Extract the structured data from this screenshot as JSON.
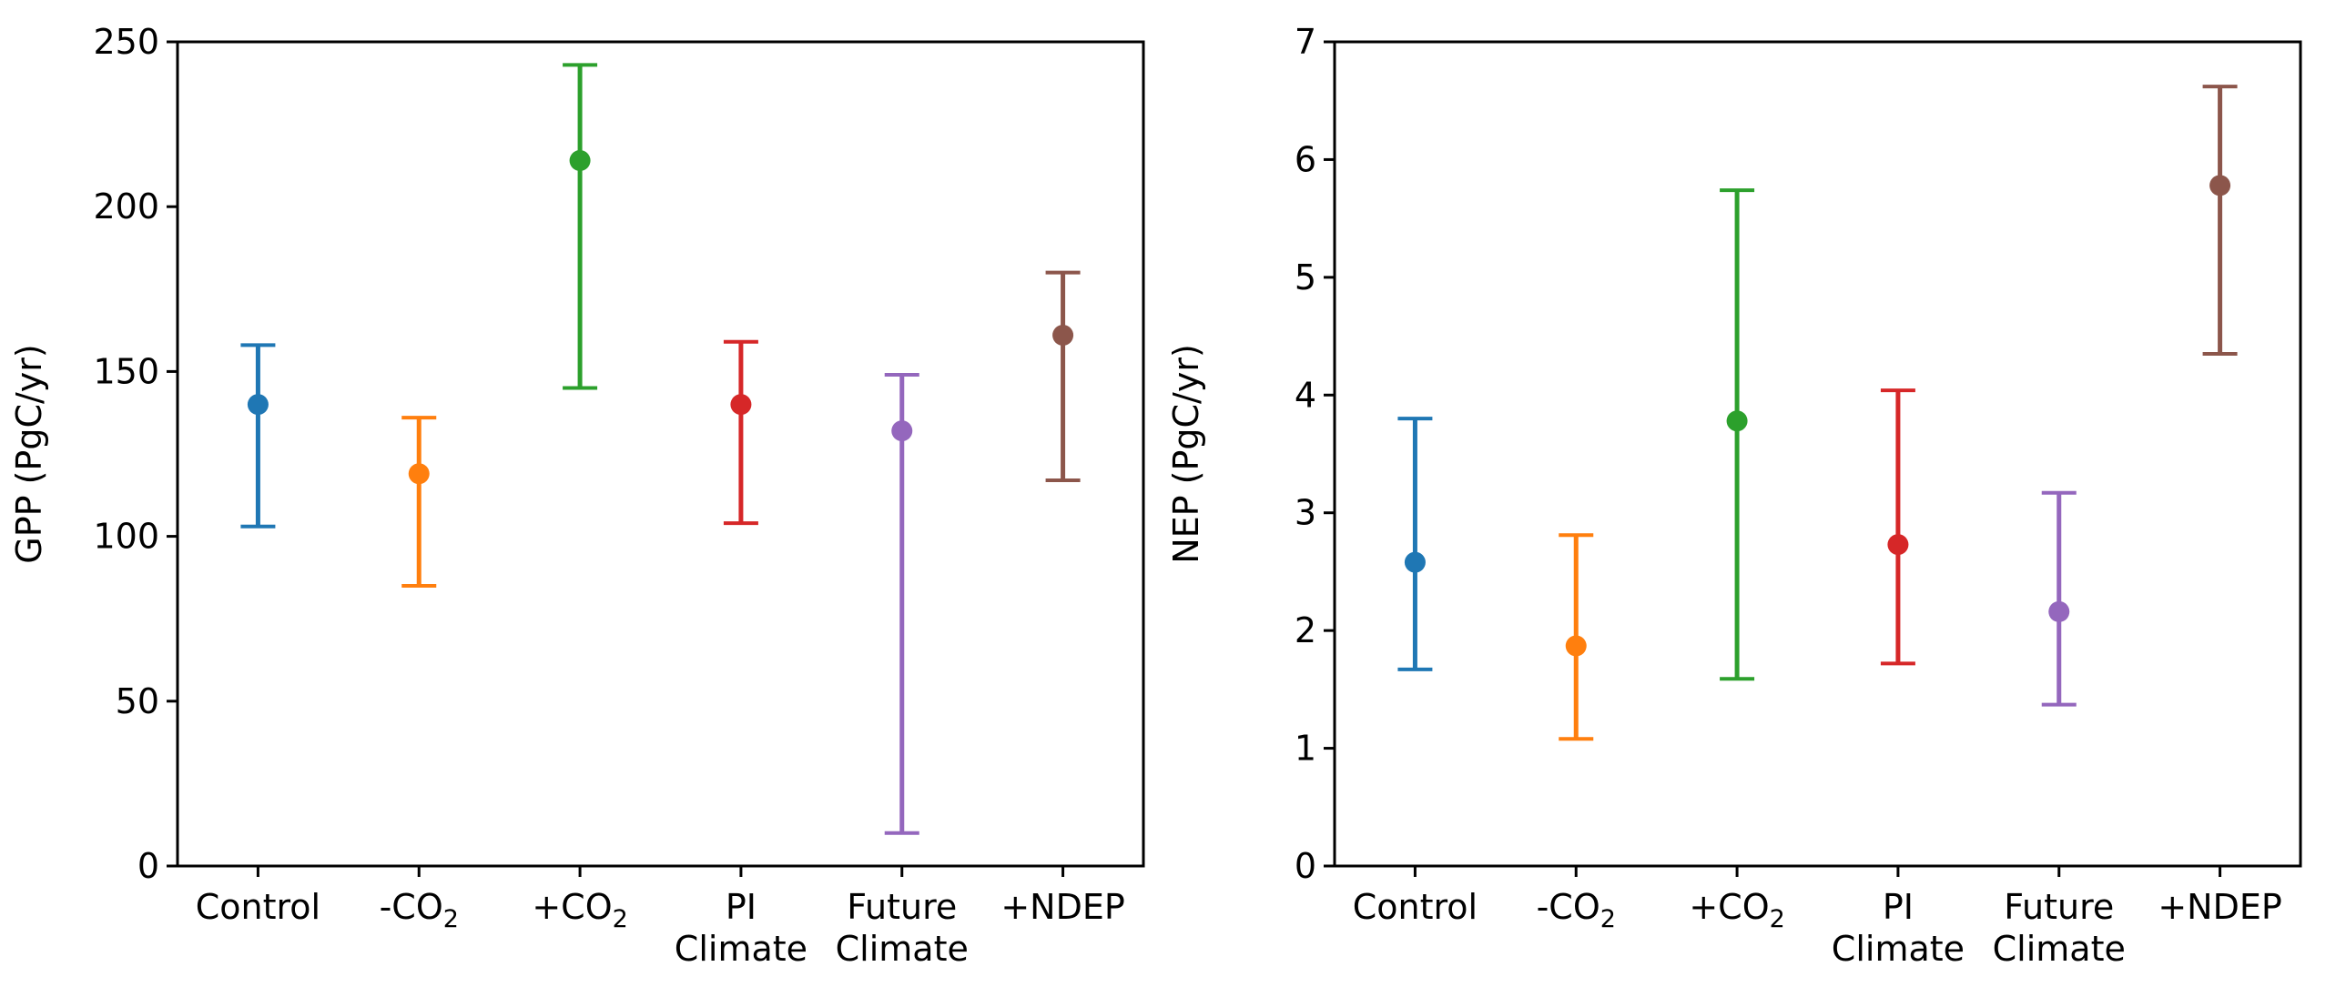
{
  "chart_data": [
    {
      "type": "errorbar",
      "ylabel": "GPP (PgC/yr)",
      "ylim": [
        0,
        250
      ],
      "yticks": [
        0,
        50,
        100,
        150,
        200,
        250
      ],
      "categories": [
        {
          "lines": [
            "Control"
          ]
        },
        {
          "lines": [
            "-CO2"
          ],
          "prefix": "-CO",
          "sub": "2"
        },
        {
          "lines": [
            "+CO2"
          ],
          "prefix": "+CO",
          "sub": "2"
        },
        {
          "lines": [
            "PI",
            "Climate"
          ]
        },
        {
          "lines": [
            "Future",
            "Climate"
          ]
        },
        {
          "lines": [
            "+NDEP"
          ]
        }
      ],
      "points": [
        {
          "value": 140,
          "low": 103,
          "high": 158,
          "color": "#1f77b4"
        },
        {
          "value": 119,
          "low": 85,
          "high": 136,
          "color": "#ff7f0e"
        },
        {
          "value": 214,
          "low": 145,
          "high": 243,
          "color": "#2ca02c"
        },
        {
          "value": 140,
          "low": 104,
          "high": 159,
          "color": "#d62728"
        },
        {
          "value": 132,
          "low": 10,
          "high": 149,
          "color": "#9467bd"
        },
        {
          "value": 161,
          "low": 117,
          "high": 180,
          "color": "#8c564b"
        }
      ],
      "grid": false
    },
    {
      "type": "errorbar",
      "ylabel": "NEP (PgC/yr)",
      "ylim": [
        0,
        7
      ],
      "yticks": [
        0,
        1,
        2,
        3,
        4,
        5,
        6,
        7
      ],
      "categories": [
        {
          "lines": [
            "Control"
          ]
        },
        {
          "lines": [
            "-CO2"
          ],
          "prefix": "-CO",
          "sub": "2"
        },
        {
          "lines": [
            "+CO2"
          ],
          "prefix": "+CO",
          "sub": "2"
        },
        {
          "lines": [
            "PI",
            "Climate"
          ]
        },
        {
          "lines": [
            "Future",
            "Climate"
          ]
        },
        {
          "lines": [
            "+NDEP"
          ]
        }
      ],
      "points": [
        {
          "value": 2.58,
          "low": 1.67,
          "high": 3.8,
          "color": "#1f77b4"
        },
        {
          "value": 1.87,
          "low": 1.08,
          "high": 2.81,
          "color": "#ff7f0e"
        },
        {
          "value": 3.78,
          "low": 1.59,
          "high": 5.74,
          "color": "#2ca02c"
        },
        {
          "value": 2.73,
          "low": 1.72,
          "high": 4.04,
          "color": "#d62728"
        },
        {
          "value": 2.16,
          "low": 1.37,
          "high": 3.17,
          "color": "#9467bd"
        },
        {
          "value": 5.78,
          "low": 4.35,
          "high": 6.62,
          "color": "#8c564b"
        }
      ],
      "grid": false
    }
  ]
}
